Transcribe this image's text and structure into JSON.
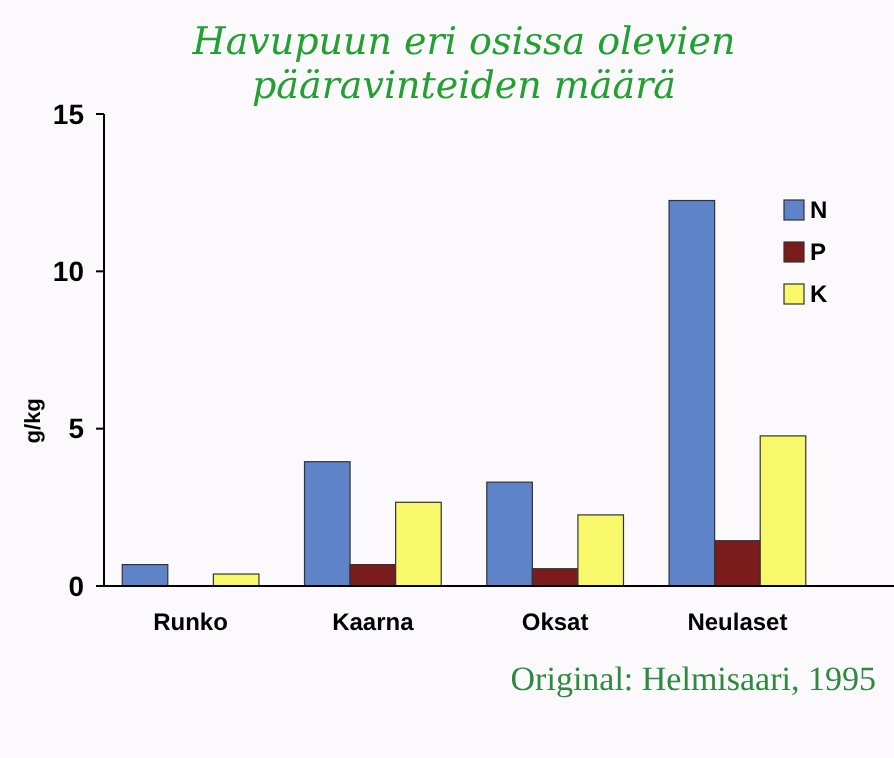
{
  "chart_data": {
    "type": "bar",
    "title": "Havupuun eri osissa olevien pääravinteiden määrä",
    "ylabel": "g/kg",
    "categories": [
      "Runko",
      "Kaarna",
      "Oksat",
      "Neulaset"
    ],
    "series": [
      {
        "name": "N",
        "color": "#5f83c8",
        "values": [
          0.68,
          3.95,
          3.3,
          12.25
        ]
      },
      {
        "name": "P",
        "color": "#7a1c1c",
        "values": [
          null,
          0.68,
          0.55,
          1.44
        ]
      },
      {
        "name": "K",
        "color": "#f8f86a",
        "values": [
          0.38,
          2.66,
          2.26,
          4.77
        ]
      }
    ],
    "ylim": [
      0,
      15
    ],
    "yticks": [
      0,
      5,
      10,
      15
    ],
    "grid": false,
    "legend": "top right",
    "annotations": [
      "Original: Helmisaari, 1995"
    ]
  }
}
